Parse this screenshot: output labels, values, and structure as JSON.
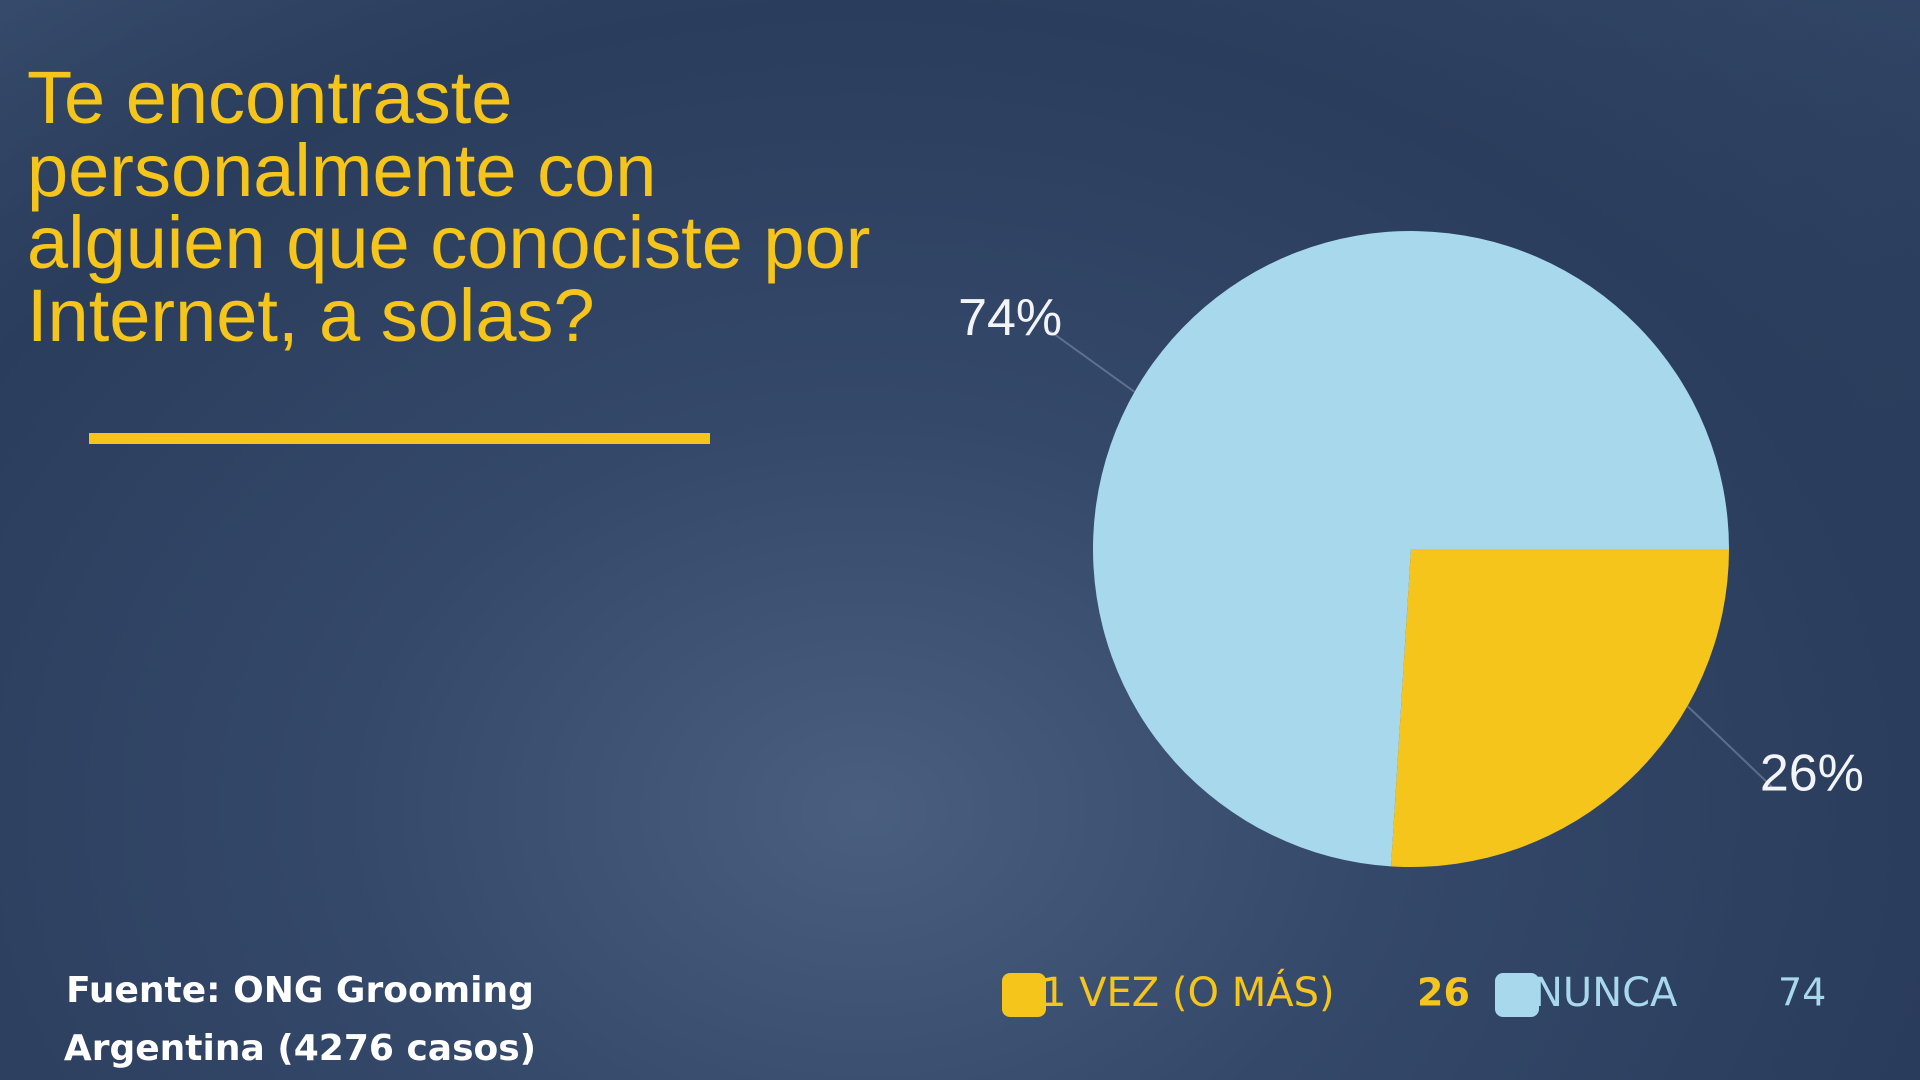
{
  "chart_data": {
    "type": "pie",
    "title": "Te encontraste personalmente con alguien que conociste por Internet, a solas?",
    "categories": [
      "1 VEZ (O MÁS)",
      "NUNCA"
    ],
    "values": [
      26,
      74
    ],
    "value_labels": [
      "26%",
      "74%"
    ],
    "colors": [
      "#f5c51b",
      "#a7d8eb"
    ],
    "source": "Fuente: ONG Grooming Argentina (4276 casos)"
  }
}
